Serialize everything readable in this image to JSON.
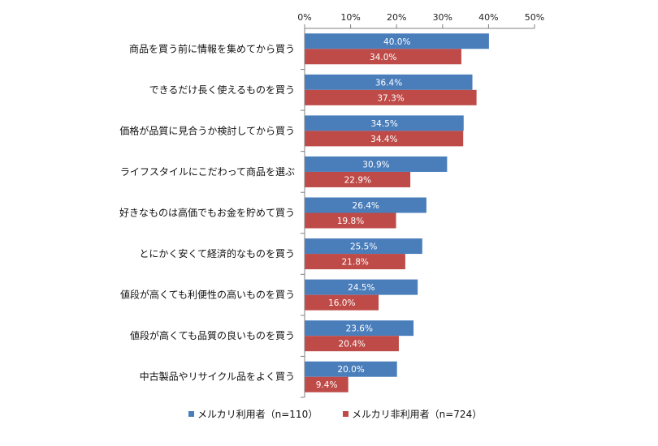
{
  "colors": {
    "series_blue": "#4a7ebb",
    "series_red": "#be4b48",
    "axis": "#808080",
    "text": "#111111"
  },
  "chart_data": {
    "type": "bar",
    "orientation": "horizontal",
    "categories": [
      "商品を買う前に情報を集めてから買う",
      "できるだけ長く使えるものを買う",
      "価格が品質に見合うか検討してから買う",
      "ライフスタイルにこだわって商品を選ぶ",
      "好きなものは高価でもお金を貯めて買う",
      "とにかく安くて経済的なものを買う",
      "値段が高くても利便性の高いものを買う",
      "値段が高くても品質の良いものを買う",
      "中古製品やリサイクル品をよく買う"
    ],
    "series": [
      {
        "name": "メルカリ利用者（n=110）",
        "color": "#4a7ebb",
        "values": [
          40.0,
          36.4,
          34.5,
          30.9,
          26.4,
          25.5,
          24.5,
          23.6,
          20.0
        ],
        "labels": [
          "40.0%",
          "36.4%",
          "34.5%",
          "30.9%",
          "26.4%",
          "25.5%",
          "24.5%",
          "23.6%",
          "20.0%"
        ]
      },
      {
        "name": "メルカリ非利用者（n=724）",
        "color": "#be4b48",
        "values": [
          34.0,
          37.3,
          34.4,
          22.9,
          19.8,
          21.8,
          16.0,
          20.4,
          9.4
        ],
        "labels": [
          "34.0%",
          "37.3%",
          "34.4%",
          "22.9%",
          "19.8%",
          "21.8%",
          "16.0%",
          "20.4%",
          "9.4%"
        ]
      }
    ],
    "xlim": [
      0,
      50
    ],
    "xticks": [
      0,
      10,
      20,
      30,
      40,
      50
    ],
    "xtick_labels": [
      "0%",
      "10%",
      "20%",
      "30%",
      "40%",
      "50%"
    ],
    "x_axis_position": "top",
    "grid": false,
    "legend_position": "bottom"
  }
}
